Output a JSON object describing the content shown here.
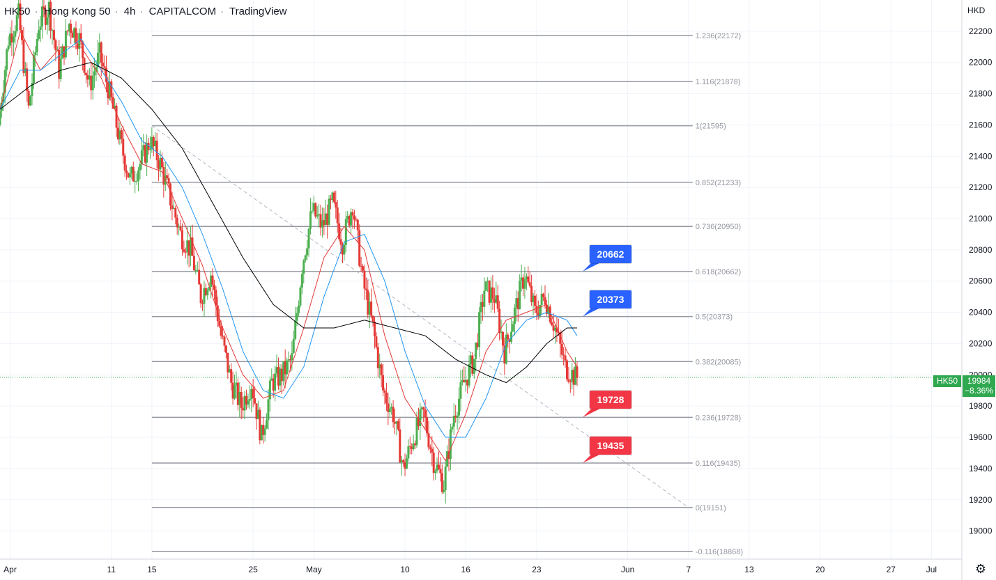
{
  "header": {
    "symbol": "HK50",
    "name": "Hong Kong 50",
    "interval": "4h",
    "broker": "CAPITALCOM",
    "platform": "TradingView"
  },
  "currency": "HKD",
  "settings_icon": "gear-icon",
  "current_price": {
    "symbol": "HK50",
    "value": "19984",
    "change": "−8.36%",
    "color": "#2fa84f"
  },
  "colors": {
    "up": "#4caf50",
    "down": "#e53935",
    "ema_fast": "#e53935",
    "ema_mid": "#2196f3",
    "ema_slow": "#000000",
    "fib_line": "#9598a1",
    "callout_blue": "#2962ff",
    "callout_red": "#f23645"
  },
  "chart_data": {
    "type": "candlestick",
    "y_axis": {
      "min": 18820,
      "max": 22400,
      "ticks": [
        22200,
        22000,
        21800,
        21600,
        21400,
        21200,
        21000,
        20800,
        20600,
        20400,
        20200,
        20000,
        19800,
        19600,
        19400,
        19200,
        19000
      ]
    },
    "x_axis": {
      "ticks": [
        {
          "label": "Apr",
          "date": "2022-04-01"
        },
        {
          "label": "11",
          "date": "2022-04-11"
        },
        {
          "label": "15",
          "date": "2022-04-15"
        },
        {
          "label": "25",
          "date": "2022-04-25"
        },
        {
          "label": "May",
          "date": "2022-05-01"
        },
        {
          "label": "10",
          "date": "2022-05-10"
        },
        {
          "label": "16",
          "date": "2022-05-16"
        },
        {
          "label": "23",
          "date": "2022-05-23"
        },
        {
          "label": "Jun",
          "date": "2022-06-01"
        },
        {
          "label": "7",
          "date": "2022-06-07"
        },
        {
          "label": "13",
          "date": "2022-06-13"
        },
        {
          "label": "20",
          "date": "2022-06-20"
        },
        {
          "label": "27",
          "date": "2022-06-27"
        },
        {
          "label": "Jul",
          "date": "2022-07-01"
        }
      ]
    },
    "fibonacci": {
      "start_date": "2022-04-15",
      "end_date": "2022-06-07",
      "levels": [
        {
          "ratio": "1.236",
          "price": 22172,
          "label": "1.236(22172)"
        },
        {
          "ratio": "1.116",
          "price": 21878,
          "label": "1.116(21878)"
        },
        {
          "ratio": "1",
          "price": 21595,
          "label": "1(21595)"
        },
        {
          "ratio": "0.852",
          "price": 21233,
          "label": "0.852(21233)"
        },
        {
          "ratio": "0.736",
          "price": 20950,
          "label": "0.736(20950)"
        },
        {
          "ratio": "0.618",
          "price": 20662,
          "label": "0.618(20662)"
        },
        {
          "ratio": "0.5",
          "price": 20373,
          "label": "0.5(20373)"
        },
        {
          "ratio": "0.382",
          "price": 20085,
          "label": "0.382(20085)"
        },
        {
          "ratio": "0.236",
          "price": 19728,
          "label": "0.236(19728)"
        },
        {
          "ratio": "0.116",
          "price": 19435,
          "label": "0.116(19435)"
        },
        {
          "ratio": "0",
          "price": 19151,
          "label": "0(19151)"
        },
        {
          "ratio": "-0.116",
          "price": 18868,
          "label": "-0.116(18868)"
        }
      ],
      "trend_line": {
        "from": {
          "date": "2022-04-15",
          "price": 21595
        },
        "to": {
          "date": "2022-06-07",
          "price": 19151
        }
      }
    },
    "callouts": [
      {
        "text": "20662",
        "price": 20662,
        "date": "2022-05-27",
        "color": "blue"
      },
      {
        "text": "20373",
        "price": 20373,
        "date": "2022-05-27",
        "color": "blue"
      },
      {
        "text": "19728",
        "price": 19728,
        "date": "2022-05-27",
        "color": "red"
      },
      {
        "text": "19435",
        "price": 19435,
        "date": "2022-05-27",
        "color": "red"
      }
    ],
    "last_price": 19984,
    "ohlc_waypoints": [
      [
        "2022-03-31",
        21600
      ],
      [
        "2022-04-01",
        22150
      ],
      [
        "2022-04-02",
        22300
      ],
      [
        "2022-04-03",
        21700
      ],
      [
        "2022-04-04",
        22250
      ],
      [
        "2022-04-05",
        22350
      ],
      [
        "2022-04-06",
        21950
      ],
      [
        "2022-04-07",
        22250
      ],
      [
        "2022-04-08",
        22150
      ],
      [
        "2022-04-09",
        21850
      ],
      [
        "2022-04-10",
        22050
      ],
      [
        "2022-04-11",
        21800
      ],
      [
        "2022-04-12",
        21500
      ],
      [
        "2022-04-13",
        21250
      ],
      [
        "2022-04-14",
        21350
      ],
      [
        "2022-04-15",
        21500
      ],
      [
        "2022-04-16",
        21350
      ],
      [
        "2022-04-18",
        20900
      ],
      [
        "2022-04-19",
        20800
      ],
      [
        "2022-04-20",
        20500
      ],
      [
        "2022-04-21",
        20650
      ],
      [
        "2022-04-22",
        20250
      ],
      [
        "2022-04-23",
        19950
      ],
      [
        "2022-04-24",
        19800
      ],
      [
        "2022-04-25",
        19950
      ],
      [
        "2022-04-26",
        19600
      ],
      [
        "2022-04-27",
        19950
      ],
      [
        "2022-04-28",
        20000
      ],
      [
        "2022-04-29",
        20100
      ],
      [
        "2022-04-30",
        20700
      ],
      [
        "2022-05-01",
        21050
      ],
      [
        "2022-05-02",
        20950
      ],
      [
        "2022-05-03",
        21100
      ],
      [
        "2022-05-04",
        20850
      ],
      [
        "2022-05-05",
        21100
      ],
      [
        "2022-05-06",
        20600
      ],
      [
        "2022-05-07",
        20300
      ],
      [
        "2022-05-08",
        19900
      ],
      [
        "2022-05-09",
        19750
      ],
      [
        "2022-05-10",
        19400
      ],
      [
        "2022-05-11",
        19600
      ],
      [
        "2022-05-12",
        19750
      ],
      [
        "2022-05-13",
        19450
      ],
      [
        "2022-05-14",
        19300
      ],
      [
        "2022-05-15",
        19750
      ],
      [
        "2022-05-16",
        19950
      ],
      [
        "2022-05-17",
        20100
      ],
      [
        "2022-05-18",
        20550
      ],
      [
        "2022-05-19",
        20500
      ],
      [
        "2022-05-20",
        20150
      ],
      [
        "2022-05-21",
        20400
      ],
      [
        "2022-05-22",
        20650
      ],
      [
        "2022-05-23",
        20400
      ],
      [
        "2022-05-24",
        20500
      ],
      [
        "2022-05-25",
        20300
      ],
      [
        "2022-05-26",
        20050
      ],
      [
        "2022-05-27",
        19984
      ]
    ],
    "moving_averages": [
      {
        "color": "red",
        "points": [
          [
            "2022-03-31",
            21700
          ],
          [
            "2022-04-02",
            22200
          ],
          [
            "2022-04-04",
            21950
          ],
          [
            "2022-04-06",
            22100
          ],
          [
            "2022-04-08",
            22100
          ],
          [
            "2022-04-10",
            21900
          ],
          [
            "2022-04-12",
            21600
          ],
          [
            "2022-04-14",
            21350
          ],
          [
            "2022-04-16",
            21300
          ],
          [
            "2022-04-18",
            21000
          ],
          [
            "2022-04-20",
            20700
          ],
          [
            "2022-04-22",
            20300
          ],
          [
            "2022-04-24",
            20000
          ],
          [
            "2022-04-26",
            19850
          ],
          [
            "2022-04-28",
            19900
          ],
          [
            "2022-04-30",
            20300
          ],
          [
            "2022-05-02",
            20750
          ],
          [
            "2022-05-04",
            20950
          ],
          [
            "2022-05-06",
            20800
          ],
          [
            "2022-05-08",
            20250
          ],
          [
            "2022-05-10",
            19850
          ],
          [
            "2022-05-12",
            19650
          ],
          [
            "2022-05-14",
            19450
          ],
          [
            "2022-05-16",
            19750
          ],
          [
            "2022-05-18",
            20150
          ],
          [
            "2022-05-20",
            20350
          ],
          [
            "2022-05-22",
            20400
          ],
          [
            "2022-05-24",
            20450
          ],
          [
            "2022-05-26",
            20150
          ],
          [
            "2022-05-27",
            20050
          ]
        ]
      },
      {
        "color": "blue",
        "points": [
          [
            "2022-03-31",
            21700
          ],
          [
            "2022-04-02",
            21950
          ],
          [
            "2022-04-04",
            21950
          ],
          [
            "2022-04-06",
            22050
          ],
          [
            "2022-04-08",
            22150
          ],
          [
            "2022-04-10",
            21950
          ],
          [
            "2022-04-12",
            21750
          ],
          [
            "2022-04-14",
            21500
          ],
          [
            "2022-04-16",
            21400
          ],
          [
            "2022-04-18",
            21200
          ],
          [
            "2022-04-20",
            20900
          ],
          [
            "2022-04-22",
            20550
          ],
          [
            "2022-04-24",
            20150
          ],
          [
            "2022-04-26",
            19900
          ],
          [
            "2022-04-28",
            19850
          ],
          [
            "2022-04-30",
            20050
          ],
          [
            "2022-05-02",
            20500
          ],
          [
            "2022-05-04",
            20850
          ],
          [
            "2022-05-06",
            20900
          ],
          [
            "2022-05-08",
            20600
          ],
          [
            "2022-05-10",
            20150
          ],
          [
            "2022-05-12",
            19800
          ],
          [
            "2022-05-14",
            19600
          ],
          [
            "2022-05-16",
            19600
          ],
          [
            "2022-05-18",
            19850
          ],
          [
            "2022-05-20",
            20200
          ],
          [
            "2022-05-22",
            20350
          ],
          [
            "2022-05-24",
            20400
          ],
          [
            "2022-05-26",
            20350
          ],
          [
            "2022-05-27",
            20250
          ]
        ]
      },
      {
        "color": "black",
        "points": [
          [
            "2022-03-31",
            21700
          ],
          [
            "2022-04-03",
            21850
          ],
          [
            "2022-04-06",
            21950
          ],
          [
            "2022-04-09",
            22000
          ],
          [
            "2022-04-12",
            21900
          ],
          [
            "2022-04-15",
            21700
          ],
          [
            "2022-04-18",
            21450
          ],
          [
            "2022-04-21",
            21100
          ],
          [
            "2022-04-24",
            20750
          ],
          [
            "2022-04-27",
            20450
          ],
          [
            "2022-04-30",
            20300
          ],
          [
            "2022-05-03",
            20300
          ],
          [
            "2022-05-06",
            20350
          ],
          [
            "2022-05-09",
            20300
          ],
          [
            "2022-05-12",
            20250
          ],
          [
            "2022-05-15",
            20100
          ],
          [
            "2022-05-18",
            20000
          ],
          [
            "2022-05-20",
            19950
          ],
          [
            "2022-05-22",
            20050
          ],
          [
            "2022-05-24",
            20200
          ],
          [
            "2022-05-26",
            20300
          ],
          [
            "2022-05-27",
            20300
          ]
        ]
      }
    ]
  }
}
